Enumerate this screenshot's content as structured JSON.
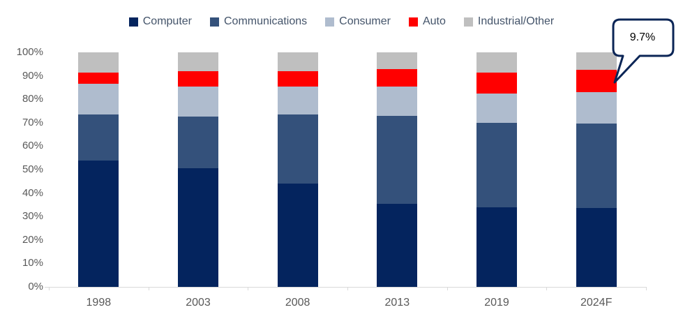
{
  "colors": {
    "background": "#FFFFFF",
    "axis_line": "#D9D9D9",
    "tick_label": "#595959",
    "legend_text": "#44546A",
    "callout_border": "#0B2556",
    "callout_fill": "#FFFFFF",
    "callout_text": "#000000"
  },
  "chart_data": {
    "type": "bar",
    "stacked": true,
    "stacked_100_percent": true,
    "title": "",
    "xlabel": "",
    "ylabel": "",
    "grid": false,
    "legend_position": "top",
    "ylim": [
      0,
      100
    ],
    "y_tick_labels": [
      "0%",
      "10%",
      "20%",
      "30%",
      "40%",
      "50%",
      "60%",
      "70%",
      "80%",
      "90%",
      "100%"
    ],
    "categories": [
      "1998",
      "2003",
      "2008",
      "2013",
      "2019",
      "2024F"
    ],
    "series": [
      {
        "name": "Computer",
        "color": "#04245E",
        "values": [
          54.0,
          50.5,
          44.0,
          35.5,
          34.0,
          33.5
        ]
      },
      {
        "name": "Communications",
        "color": "#34517B",
        "values": [
          19.5,
          22.0,
          29.5,
          37.5,
          36.0,
          36.0
        ]
      },
      {
        "name": "Consumer",
        "color": "#AFBCCE",
        "values": [
          13.0,
          13.0,
          12.0,
          12.5,
          12.5,
          13.5
        ]
      },
      {
        "name": "Auto",
        "color": "#FF0000",
        "values": [
          5.0,
          6.5,
          6.5,
          7.5,
          9.0,
          9.7
        ]
      },
      {
        "name": "Industrial/Other",
        "color": "#BFBFBF",
        "values": [
          8.5,
          8.0,
          8.0,
          7.0,
          8.5,
          7.3
        ]
      }
    ],
    "annotation": {
      "text": "9.7%",
      "target_category": "2024F",
      "target_series": "Auto"
    }
  }
}
